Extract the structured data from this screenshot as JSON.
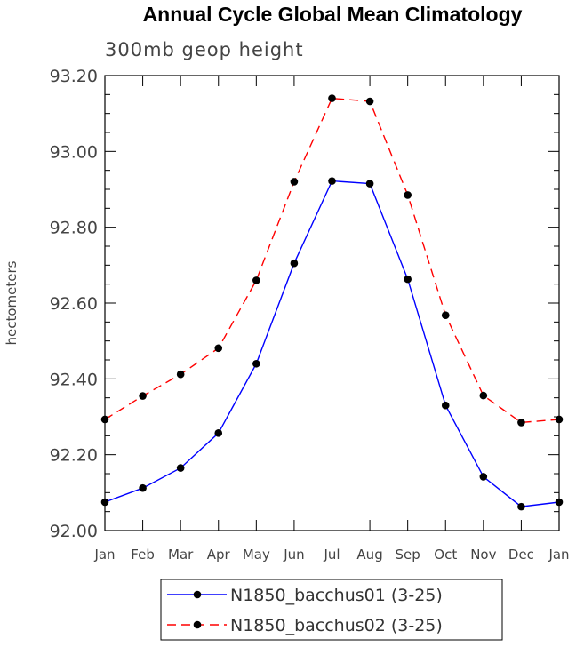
{
  "chart_data": {
    "type": "line",
    "title": "Annual Cycle Global Mean Climatology",
    "subtitle": "300mb geop height",
    "ylabel": "hectometers",
    "xlabel": "",
    "categories": [
      "Jan",
      "Feb",
      "Mar",
      "Apr",
      "May",
      "Jun",
      "Jul",
      "Aug",
      "Sep",
      "Oct",
      "Nov",
      "Dec",
      "Jan"
    ],
    "ylim": [
      92.0,
      93.2
    ],
    "yticks": [
      "92.00",
      "92.20",
      "92.40",
      "92.60",
      "92.80",
      "93.00",
      "93.20"
    ],
    "grid": false,
    "legend_position": "bottom",
    "series": [
      {
        "name": "N1850_bacchus01 (3-25)",
        "color": "#0000ff",
        "dash": "solid",
        "values": [
          92.075,
          92.112,
          92.165,
          92.257,
          92.44,
          92.705,
          92.922,
          92.915,
          92.663,
          92.33,
          92.142,
          92.063,
          92.075
        ]
      },
      {
        "name": "N1850_bacchus02 (3-25)",
        "color": "#ff0000",
        "dash": "dashed",
        "values": [
          92.293,
          92.355,
          92.412,
          92.481,
          92.66,
          92.92,
          93.14,
          93.132,
          92.885,
          92.568,
          92.356,
          92.285,
          92.293
        ]
      }
    ]
  }
}
